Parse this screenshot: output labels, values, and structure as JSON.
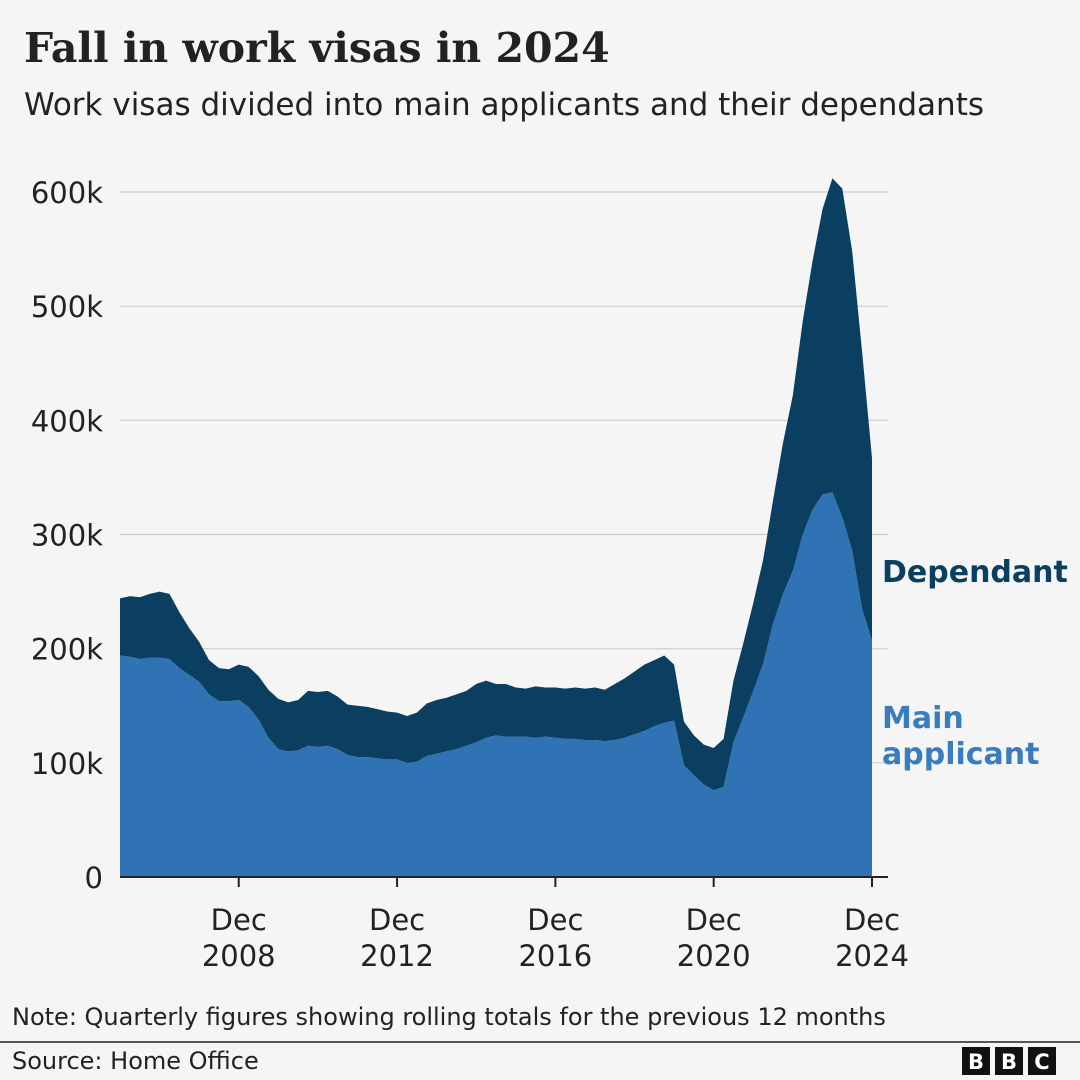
{
  "chart_data": {
    "type": "stacked_area",
    "title": "Fall in work visas in 2024",
    "subtitle": "Work visas divided into main applicants and their dependants",
    "note": "Note: Quarterly figures showing rolling totals for the previous 12 months",
    "source": "Source: Home Office",
    "logo": [
      "B",
      "B",
      "C"
    ],
    "x": [
      "2005-12",
      "2006-03",
      "2006-06",
      "2006-09",
      "2006-12",
      "2007-03",
      "2007-06",
      "2007-09",
      "2007-12",
      "2008-03",
      "2008-06",
      "2008-09",
      "2008-12",
      "2009-03",
      "2009-06",
      "2009-09",
      "2009-12",
      "2010-03",
      "2010-06",
      "2010-09",
      "2010-12",
      "2011-03",
      "2011-06",
      "2011-09",
      "2011-12",
      "2012-03",
      "2012-06",
      "2012-09",
      "2012-12",
      "2013-03",
      "2013-06",
      "2013-09",
      "2013-12",
      "2014-03",
      "2014-06",
      "2014-09",
      "2014-12",
      "2015-03",
      "2015-06",
      "2015-09",
      "2015-12",
      "2016-03",
      "2016-06",
      "2016-09",
      "2016-12",
      "2017-03",
      "2017-06",
      "2017-09",
      "2017-12",
      "2018-03",
      "2018-06",
      "2018-09",
      "2018-12",
      "2019-03",
      "2019-06",
      "2019-09",
      "2019-12",
      "2020-03",
      "2020-06",
      "2020-09",
      "2020-12",
      "2021-03",
      "2021-06",
      "2021-09",
      "2021-12",
      "2022-03",
      "2022-06",
      "2022-09",
      "2022-12",
      "2023-03",
      "2023-06",
      "2023-09",
      "2023-12",
      "2024-03",
      "2024-06",
      "2024-09",
      "2024-12"
    ],
    "series": [
      {
        "name": "Main applicant",
        "color": "#2f73b4",
        "label_color": "#3a7dbf",
        "values": [
          194000,
          193000,
          191000,
          192000,
          192000,
          191000,
          183000,
          177000,
          171000,
          160000,
          154000,
          154000,
          155000,
          149000,
          138000,
          122000,
          112000,
          110000,
          111000,
          115000,
          114000,
          115000,
          112000,
          107000,
          105000,
          105000,
          104000,
          103000,
          103000,
          100000,
          101000,
          106000,
          108000,
          110000,
          112000,
          115000,
          118000,
          122000,
          124000,
          123000,
          123000,
          123000,
          122000,
          123000,
          122000,
          121000,
          121000,
          120000,
          120000,
          119000,
          120000,
          122000,
          125000,
          128000,
          132000,
          135000,
          137000,
          98000,
          89000,
          81000,
          76000,
          79000,
          118000,
          140000,
          163000,
          187000,
          222000,
          248000,
          268000,
          300000,
          322000,
          335000,
          337000,
          315000,
          286000,
          235000,
          207000
        ]
      },
      {
        "name": "Dependant",
        "color": "#0b3f61",
        "label_color": "#0b3f61",
        "values": [
          50000,
          53000,
          54000,
          56000,
          58000,
          57000,
          49000,
          41000,
          35000,
          30000,
          29000,
          28000,
          31000,
          35000,
          38000,
          42000,
          44000,
          43000,
          44000,
          48000,
          48000,
          48000,
          46000,
          44000,
          45000,
          44000,
          43000,
          42000,
          41000,
          41000,
          43000,
          46000,
          47000,
          47000,
          48000,
          48000,
          51000,
          50000,
          45000,
          46000,
          43000,
          42000,
          45000,
          43000,
          44000,
          44000,
          45000,
          45000,
          46000,
          45000,
          49000,
          52000,
          55000,
          58000,
          58000,
          59000,
          49000,
          38000,
          35000,
          35000,
          37000,
          42000,
          54000,
          65000,
          77000,
          91000,
          108000,
          132000,
          154000,
          187000,
          218000,
          250000,
          275000,
          288000,
          262000,
          225000,
          160000
        ]
      }
    ],
    "xlim": [
      "2005-12",
      "2024-12"
    ],
    "xticks": [
      {
        "value": "2008-12",
        "label": "Dec 2008"
      },
      {
        "value": "2012-12",
        "label": "Dec 2012"
      },
      {
        "value": "2016-12",
        "label": "Dec 2016"
      },
      {
        "value": "2020-12",
        "label": "Dec 2020"
      },
      {
        "value": "2024-12",
        "label": "Dec 2024"
      }
    ],
    "ylim": [
      0,
      600000
    ],
    "yticks": [
      0,
      {
        "value": 100000,
        "label": "100k"
      },
      {
        "value": 200000,
        "label": "200k"
      },
      {
        "value": 300000,
        "label": "300k"
      },
      {
        "value": 400000,
        "label": "400k"
      },
      {
        "value": 500000,
        "label": "500k"
      },
      {
        "value": 600000,
        "label": "600k"
      }
    ],
    "grid": true
  }
}
